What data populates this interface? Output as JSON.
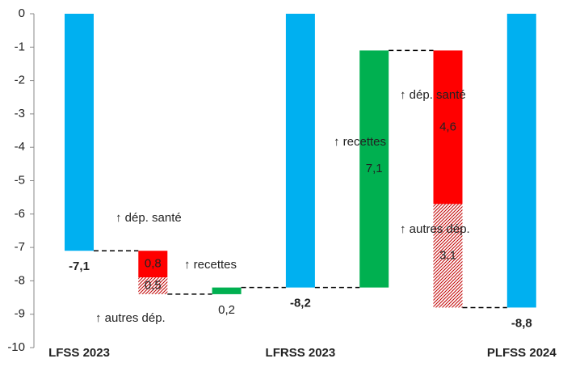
{
  "chart_data": {
    "type": "waterfall",
    "categories": [
      "LFSS 2023",
      null,
      null,
      "LFRSS 2023",
      null,
      null,
      "PLFSS 2024"
    ],
    "series": [
      {
        "color": "#00b0f0",
        "total": true,
        "values": [
          -7.1,
          null,
          null,
          -8.2,
          null,
          null,
          -8.8
        ],
        "value_labels": [
          "-7,1",
          null,
          null,
          "-8,2",
          null,
          null,
          "-8,8"
        ]
      },
      {
        "color": "#ff0000",
        "direction": "down",
        "values": [
          null,
          0.8,
          null,
          null,
          null,
          4.6,
          null
        ],
        "value_labels": [
          null,
          "0,8",
          null,
          null,
          null,
          "4,6",
          null
        ]
      },
      {
        "color": "#c00000",
        "pattern": "hatch",
        "direction": "down",
        "values": [
          null,
          0.5,
          null,
          null,
          null,
          3.1,
          null
        ],
        "value_labels": [
          null,
          "0,5",
          null,
          null,
          null,
          "3,1",
          null
        ]
      },
      {
        "color": "#00b050",
        "direction": "up",
        "values": [
          null,
          null,
          0.2,
          null,
          7.1,
          null,
          null
        ],
        "value_labels": [
          null,
          null,
          "0,2",
          null,
          "7,1",
          null,
          null
        ]
      }
    ],
    "annotations": [
      "↑ dép. santé",
      "↑ recettes",
      "↑ autres dép.",
      "↑ recettes",
      "↑ dép. santé",
      "↑ autres dép."
    ],
    "ylim": [
      -10,
      0
    ],
    "yticks": [
      0,
      -1,
      -2,
      -3,
      -4,
      -5,
      -6,
      -7,
      -8,
      -9,
      -10
    ]
  }
}
